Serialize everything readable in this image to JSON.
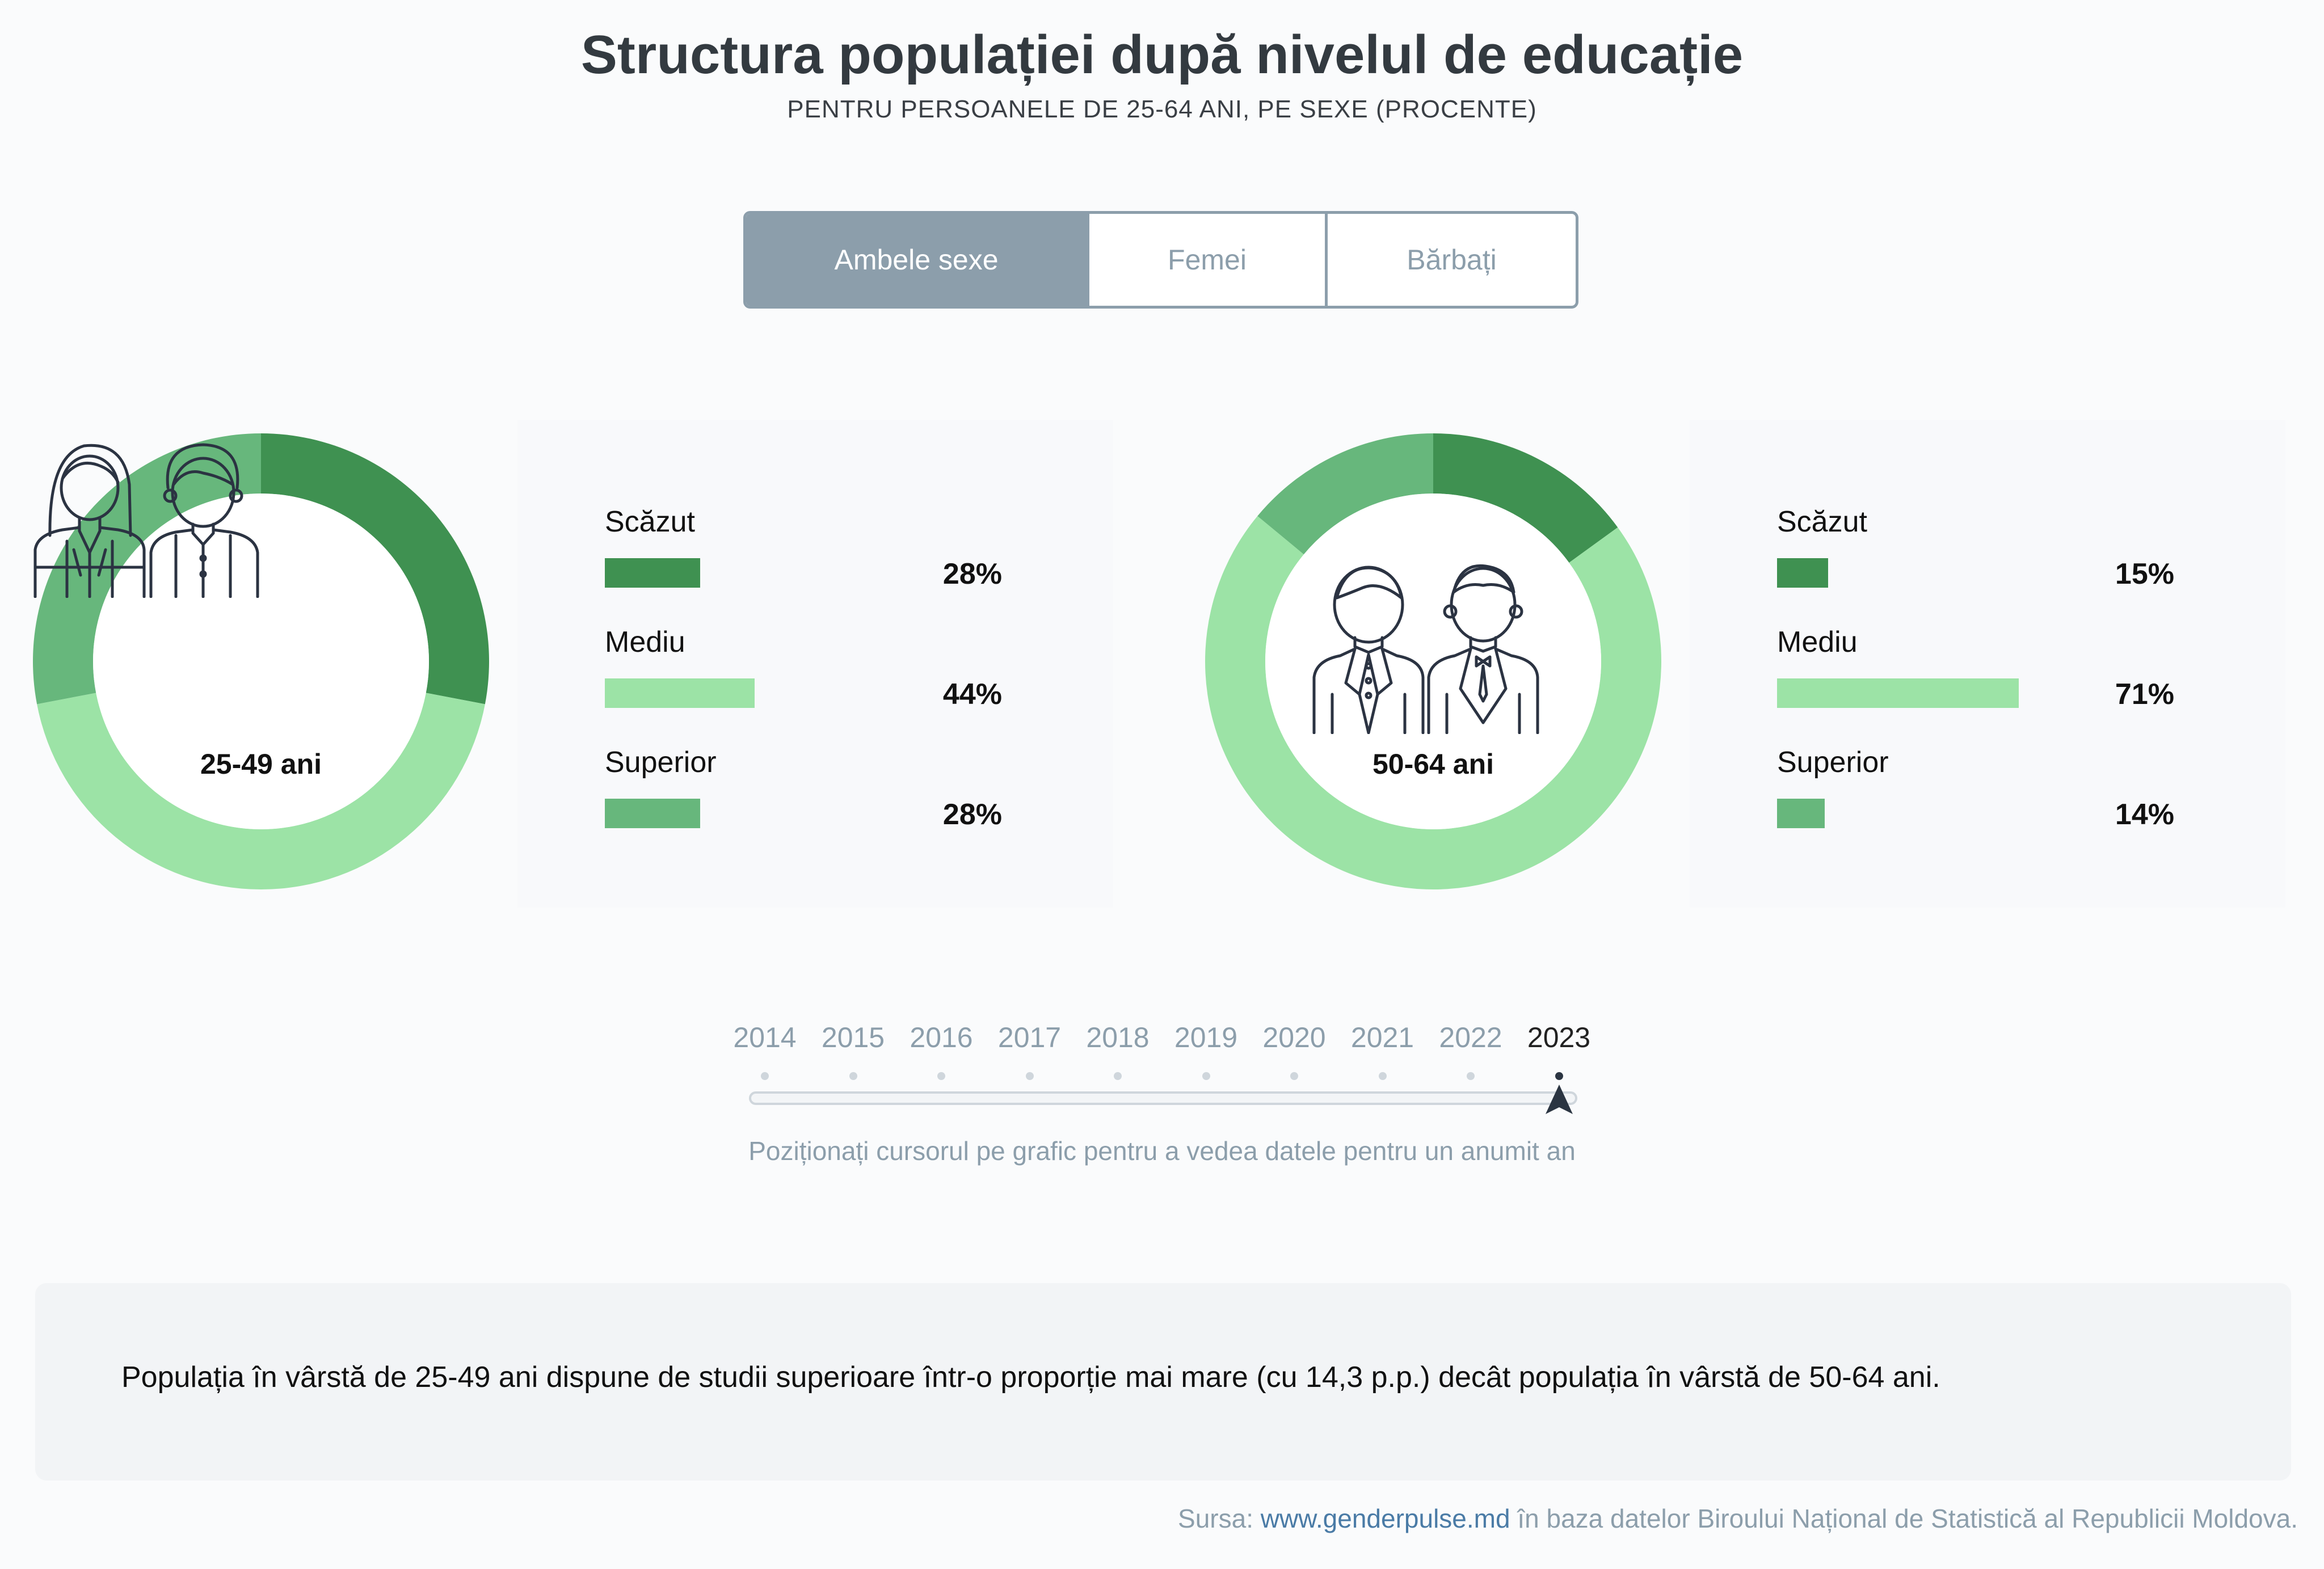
{
  "title": "Structura populației după nivelul de educație",
  "subtitle": "PENTRU PERSOANELE DE 25-64 ANI, PE SEXE (PROCENTE)",
  "toggle": {
    "options": [
      "Ambele sexe",
      "Femei",
      "Bărbați"
    ],
    "selected": "Ambele sexe"
  },
  "colors": {
    "scazut": "#3f9151",
    "mediu": "#9ce3a6",
    "superior": "#67b77c",
    "accent": "#8c9eab"
  },
  "icons": [
    "woman-and-man-icon",
    "two-men-in-suits-icon",
    "timeline-cursor-icon"
  ],
  "groups": [
    {
      "label": "25-49 ani",
      "items": [
        {
          "name": "Scăzut",
          "value": 28,
          "display": "28%"
        },
        {
          "name": "Mediu",
          "value": 44,
          "display": "44%"
        },
        {
          "name": "Superior",
          "value": 28,
          "display": "28%"
        }
      ]
    },
    {
      "label": "50-64 ani",
      "items": [
        {
          "name": "Scăzut",
          "value": 15,
          "display": "15%"
        },
        {
          "name": "Mediu",
          "value": 71,
          "display": "71%"
        },
        {
          "name": "Superior",
          "value": 14,
          "display": "14%"
        }
      ]
    }
  ],
  "chart_data": [
    {
      "type": "pie",
      "title": "25-49 ani",
      "categories": [
        "Scăzut",
        "Mediu",
        "Superior"
      ],
      "values": [
        28,
        44,
        28
      ]
    },
    {
      "type": "pie",
      "title": "50-64 ani",
      "categories": [
        "Scăzut",
        "Mediu",
        "Superior"
      ],
      "values": [
        15,
        71,
        14
      ]
    }
  ],
  "timeline": {
    "years": [
      "2014",
      "2015",
      "2016",
      "2017",
      "2018",
      "2019",
      "2020",
      "2021",
      "2022",
      "2023"
    ],
    "selected": "2023",
    "hint": "Poziționați cursorul pe grafic pentru a vedea datele pentru un anumit an"
  },
  "note": "Populația în vârstă de 25-49 ani dispune de studii superioare într-o proporție mai mare (cu 14,3 p.p.) decât populația în vârstă de 50-64 ani.",
  "source": {
    "prefix": "Sursa: ",
    "link": "www.genderpulse.md",
    "suffix": " în baza datelor Biroului Național de Statistică al Republicii Moldova."
  }
}
